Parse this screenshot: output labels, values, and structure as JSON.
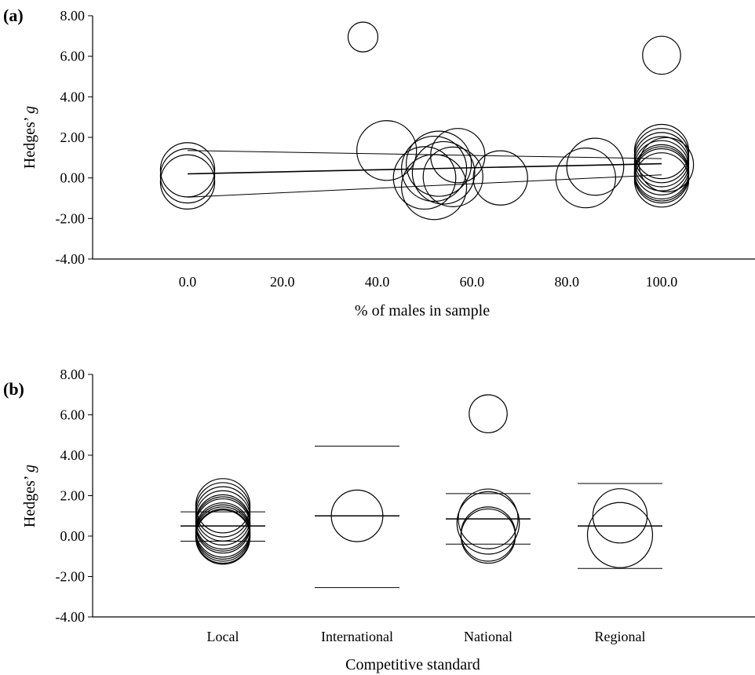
{
  "chart_data": [
    {
      "panel_label": "(a)",
      "type": "scatter",
      "xlabel": "% of males in sample",
      "ylabel_main": "Hedges’ ",
      "ylabel_italic": "g",
      "ylim": [
        -4,
        8
      ],
      "xlim": [
        -20,
        120
      ],
      "yticks": [
        "-4.00",
        "-2.00",
        "0.00",
        "2.00",
        "4.00",
        "6.00",
        "8.00"
      ],
      "ytick_values": [
        -4,
        -2,
        0,
        2,
        4,
        6,
        8
      ],
      "xticks": [
        "0.0",
        "20.0",
        "40.0",
        "60.0",
        "80.0",
        "100.0"
      ],
      "xtick_values": [
        0,
        20,
        40,
        60,
        80,
        100
      ],
      "points": [
        {
          "x": 0,
          "y": 0.4,
          "r": 1.0
        },
        {
          "x": 0,
          "y": 0.1,
          "r": 1.0
        },
        {
          "x": 0,
          "y": -0.2,
          "r": 1.0
        },
        {
          "x": 37,
          "y": 6.95,
          "r": 0.55
        },
        {
          "x": 100,
          "y": 6.05,
          "r": 0.7
        },
        {
          "x": 42,
          "y": 1.35,
          "r": 1.1
        },
        {
          "x": 50,
          "y": 0.0,
          "r": 1.15
        },
        {
          "x": 52,
          "y": 0.45,
          "r": 1.2
        },
        {
          "x": 52,
          "y": -0.45,
          "r": 1.2
        },
        {
          "x": 53,
          "y": 0.7,
          "r": 1.2
        },
        {
          "x": 54,
          "y": 0.25,
          "r": 1.15
        },
        {
          "x": 56,
          "y": 0.05,
          "r": 1.1
        },
        {
          "x": 57,
          "y": 1.1,
          "r": 1.0
        },
        {
          "x": 66,
          "y": 0.0,
          "r": 1.0
        },
        {
          "x": 84,
          "y": 0.0,
          "r": 1.1
        },
        {
          "x": 86,
          "y": 0.55,
          "r": 1.05
        },
        {
          "x": 100,
          "y": 1.3,
          "r": 1.0
        },
        {
          "x": 100,
          "y": 1.1,
          "r": 1.0
        },
        {
          "x": 100,
          "y": 0.9,
          "r": 1.0
        },
        {
          "x": 100,
          "y": 0.7,
          "r": 1.0
        },
        {
          "x": 100,
          "y": 0.5,
          "r": 1.0
        },
        {
          "x": 100,
          "y": 0.3,
          "r": 1.0
        },
        {
          "x": 100,
          "y": 0.1,
          "r": 1.0
        },
        {
          "x": 100,
          "y": -0.1,
          "r": 1.0
        },
        {
          "x": 100,
          "y": 0.2,
          "r": 1.0
        },
        {
          "x": 101,
          "y": 0.65,
          "r": 1.0
        }
      ],
      "regression": {
        "x": [
          0,
          100
        ],
        "y": [
          0.2,
          0.7
        ]
      },
      "ci_upper": {
        "x": [
          0,
          100
        ],
        "y": [
          1.35,
          0.95
        ]
      },
      "ci_lower": {
        "x": [
          0,
          100
        ],
        "y": [
          -0.95,
          0.15
        ]
      }
    },
    {
      "panel_label": "(b)",
      "type": "scatter",
      "xlabel": "Competitive standard",
      "ylabel_main": "Hedges’ ",
      "ylabel_italic": "g",
      "ylim": [
        -4,
        8
      ],
      "yticks": [
        "-4.00",
        "-2.00",
        "0.00",
        "2.00",
        "4.00",
        "6.00",
        "8.00"
      ],
      "ytick_values": [
        -4,
        -2,
        0,
        2,
        4,
        6,
        8
      ],
      "categories": [
        "Local",
        "International",
        "National",
        "Regional"
      ],
      "groups": [
        {
          "category": "Local",
          "mean": 0.5,
          "ci": [
            -0.25,
            1.2
          ],
          "points": [
            {
              "y": 1.5,
              "r": 1.0
            },
            {
              "y": 1.3,
              "r": 1.0
            },
            {
              "y": 1.1,
              "r": 1.0
            },
            {
              "y": 0.9,
              "r": 1.0
            },
            {
              "y": 0.7,
              "r": 1.0
            },
            {
              "y": 0.5,
              "r": 1.0
            },
            {
              "y": 0.3,
              "r": 1.0
            },
            {
              "y": 0.1,
              "r": 1.0
            },
            {
              "y": -0.05,
              "r": 1.0
            },
            {
              "y": 0.2,
              "r": 1.0
            },
            {
              "y": 0.6,
              "r": 1.0
            },
            {
              "y": 0.0,
              "r": 1.0
            }
          ]
        },
        {
          "category": "International",
          "mean": 1.0,
          "ci": [
            -2.55,
            4.45
          ],
          "points": [
            {
              "y": 1.0,
              "r": 0.95
            }
          ]
        },
        {
          "category": "National",
          "mean": 0.85,
          "ci": [
            -0.4,
            2.1
          ],
          "points": [
            {
              "y": 6.05,
              "r": 0.7
            },
            {
              "y": 0.85,
              "r": 1.1
            },
            {
              "y": 0.65,
              "r": 1.15
            },
            {
              "y": 0.1,
              "r": 1.0
            },
            {
              "y": 0.0,
              "r": 1.0
            }
          ]
        },
        {
          "category": "Regional",
          "mean": 0.5,
          "ci": [
            -1.6,
            2.6
          ],
          "points": [
            {
              "y": 1.0,
              "r": 1.0
            },
            {
              "y": 0.05,
              "r": 1.2
            }
          ]
        }
      ]
    }
  ]
}
